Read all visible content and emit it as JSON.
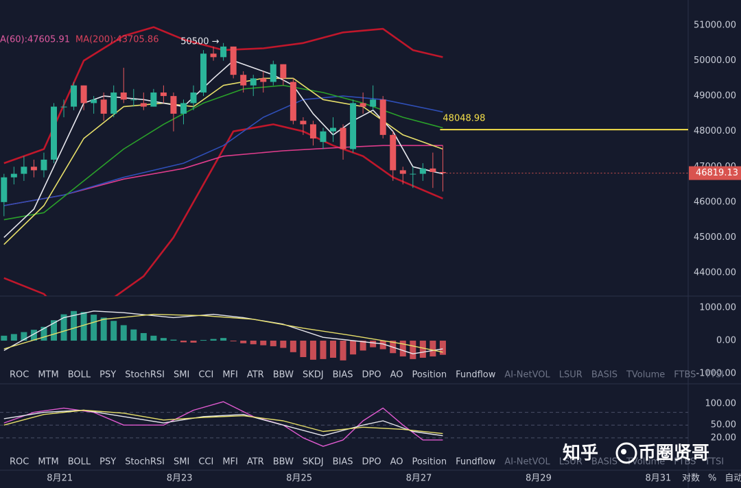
{
  "chart_data": [
    {
      "type": "candlestick",
      "open": [
        46000,
        46700,
        46800,
        47000,
        46900,
        47200,
        48700,
        48700,
        49300,
        48800,
        48900,
        48500,
        49100,
        48900,
        48800,
        48700,
        49100,
        49000,
        48500,
        48800,
        49100,
        50200,
        50100,
        50400,
        49600,
        49300,
        49500,
        49400,
        49900,
        49400,
        48300,
        48200,
        47700,
        48000,
        48100,
        47500,
        48800,
        48700,
        48900,
        47900,
        46900,
        46800,
        46800,
        46950,
        46850
      ],
      "high": [
        46800,
        47000,
        47300,
        47200,
        47400,
        48800,
        48900,
        49400,
        49300,
        49000,
        49100,
        49300,
        49800,
        49200,
        49100,
        49200,
        49300,
        49100,
        48900,
        49300,
        50300,
        50400,
        50500,
        50400,
        49700,
        49600,
        49700,
        50000,
        49900,
        49500,
        48400,
        48300,
        48100,
        48400,
        48200,
        48900,
        49100,
        49300,
        49000,
        48000,
        47000,
        47000,
        47100,
        47400,
        47600
      ],
      "low": [
        45600,
        46500,
        46600,
        46700,
        46700,
        47100,
        48400,
        48600,
        48600,
        48500,
        48300,
        48400,
        48800,
        48700,
        48600,
        48700,
        48800,
        48000,
        48200,
        48600,
        49000,
        50000,
        50000,
        49500,
        49100,
        49000,
        49100,
        49300,
        49300,
        48200,
        47900,
        47600,
        47500,
        47700,
        47200,
        47400,
        48500,
        48600,
        47800,
        46600,
        46500,
        46400,
        46600,
        46400,
        46300
      ],
      "close": [
        46700,
        46800,
        47000,
        46900,
        47200,
        48700,
        48700,
        49300,
        48800,
        48900,
        48500,
        49100,
        48900,
        48900,
        48700,
        49100,
        49000,
        48500,
        48800,
        49100,
        50200,
        50100,
        50400,
        49600,
        49300,
        49500,
        49400,
        49900,
        49500,
        48300,
        48200,
        47800,
        48000,
        48100,
        47500,
        48800,
        48700,
        48900,
        47900,
        46900,
        46800,
        46800,
        46950,
        46850,
        46819.13
      ],
      "up_color": "#2bb59a",
      "down_color": "#e8575d",
      "max_label": "50500 →",
      "legend": [
        {
          "text": "A(60):47605.91",
          "color": "#e05aa0"
        },
        {
          "text": "MA(200):43705.86",
          "color": "#d9415a"
        }
      ],
      "hline": {
        "value": 48048.98,
        "color": "#f5e04a"
      },
      "last_color": "#d9534f",
      "bands": [
        {
          "color": "#c0172b",
          "x": [
            0,
            4,
            8,
            12,
            15,
            18,
            22,
            26,
            30,
            34,
            38,
            41,
            44
          ],
          "values": [
            47100,
            47500,
            50000,
            50700,
            50950,
            50600,
            50300,
            50350,
            50500,
            50800,
            50900,
            50300,
            50100
          ]
        },
        {
          "color": "#c0172b",
          "x": [
            0,
            4,
            6,
            11,
            14,
            17,
            20,
            23,
            27,
            30,
            33,
            36,
            39,
            44
          ],
          "values": [
            43850,
            43400,
            42800,
            43300,
            43900,
            45000,
            46500,
            48000,
            48200,
            48000,
            47600,
            47300,
            46700,
            46100
          ]
        }
      ],
      "series": [
        {
          "color": "#e03c8c",
          "x": [
            0,
            6,
            12,
            18,
            22,
            28,
            34,
            38,
            44
          ],
          "values": [
            45900,
            46200,
            46650,
            46950,
            47300,
            47450,
            47550,
            47600,
            47600
          ]
        },
        {
          "color": "#2f4fb8",
          "x": [
            0,
            6,
            12,
            18,
            22,
            26,
            30,
            34,
            38,
            44
          ],
          "values": [
            45900,
            46200,
            46700,
            47100,
            47600,
            48400,
            48900,
            49000,
            48900,
            48550
          ]
        },
        {
          "color": "#2aa12a",
          "x": [
            0,
            4,
            8,
            12,
            16,
            20,
            24,
            28,
            32,
            36,
            40,
            44
          ],
          "values": [
            45500,
            45700,
            46600,
            47500,
            48200,
            48800,
            49200,
            49300,
            49100,
            48800,
            48400,
            48100
          ]
        },
        {
          "color": "#e8e06a",
          "x": [
            0,
            4,
            8,
            12,
            16,
            19,
            22,
            26,
            29,
            32,
            36,
            40,
            44
          ],
          "values": [
            44800,
            45900,
            47800,
            48700,
            48800,
            48700,
            49300,
            49500,
            49500,
            48900,
            48700,
            47900,
            47500
          ]
        },
        {
          "color": "#e8e8ee",
          "x": [
            0,
            3,
            6,
            8,
            10,
            14,
            18,
            21,
            23,
            25,
            27,
            29,
            31,
            33,
            35,
            37,
            39,
            41,
            44
          ],
          "values": [
            45000,
            45800,
            47600,
            48800,
            49000,
            48900,
            48700,
            49500,
            50000,
            49800,
            49600,
            49300,
            48500,
            47900,
            48300,
            48600,
            48000,
            47000,
            46800
          ]
        }
      ],
      "xlim": [
        -0.4,
        68.6
      ],
      "xticks": [
        {
          "value": 5.6,
          "label": "8月21"
        },
        {
          "value": 17.6,
          "label": "8月23"
        },
        {
          "value": 29.6,
          "label": "8月25"
        },
        {
          "value": 41.6,
          "label": "8月27"
        },
        {
          "value": 53.6,
          "label": "8月29"
        },
        {
          "value": 65.6,
          "label": "8月31"
        }
      ],
      "ylim": [
        43340,
        51717
      ],
      "yticks": [
        {
          "value": 44000,
          "label": "44000.00"
        },
        {
          "value": 45000,
          "label": "45000.00"
        },
        {
          "value": 46000,
          "label": "46000.00"
        },
        {
          "value": 47000,
          "label": "47000.00"
        },
        {
          "value": 48000,
          "label": "48000.00"
        },
        {
          "value": 49000,
          "label": "49000.00"
        },
        {
          "value": 50000,
          "label": "50000.00"
        },
        {
          "value": 51000,
          "label": "51000.00"
        }
      ]
    },
    {
      "type": "macd",
      "values": [
        150,
        200,
        260,
        330,
        420,
        620,
        800,
        900,
        870,
        790,
        700,
        600,
        470,
        340,
        230,
        150,
        80,
        30,
        -50,
        -60,
        20,
        50,
        80,
        -20,
        -80,
        -110,
        -140,
        -170,
        -220,
        -350,
        -500,
        -580,
        -560,
        -520,
        -600,
        -420,
        -300,
        -200,
        -260,
        -380,
        -480,
        -560,
        -520,
        -480,
        -430
      ],
      "up_color": "#2bb59a",
      "down_color": "#e8575d",
      "series": [
        {
          "color": "#e8e8ee",
          "x": [
            0,
            3,
            6,
            9,
            12,
            17,
            21,
            24,
            28,
            32,
            35,
            38,
            41,
            44
          ],
          "values": [
            -300,
            200,
            700,
            900,
            850,
            700,
            800,
            700,
            500,
            100,
            0,
            -100,
            -400,
            -250
          ]
        },
        {
          "color": "#e8e06a",
          "x": [
            0,
            5,
            10,
            15,
            20,
            25,
            30,
            35,
            40,
            44
          ],
          "values": [
            -250,
            200,
            650,
            800,
            760,
            650,
            380,
            150,
            -100,
            -350
          ]
        }
      ],
      "ylim": [
        -1312,
        1354
      ],
      "yticks": [
        {
          "value": 1000,
          "label": "1000.00"
        },
        {
          "value": 0,
          "label": "0.00"
        },
        {
          "value": -1000,
          "label": "-1000.00"
        }
      ]
    },
    {
      "type": "line",
      "series": [
        {
          "color": "#e05ad0",
          "x": [
            0,
            3,
            6,
            9,
            12,
            16,
            19,
            22,
            25,
            28,
            30,
            32,
            34,
            36,
            38,
            40,
            42,
            44
          ],
          "values": [
            55,
            80,
            90,
            80,
            50,
            50,
            85,
            105,
            70,
            50,
            20,
            0,
            15,
            60,
            90,
            50,
            15,
            15
          ]
        },
        {
          "color": "#e8e8ee",
          "x": [
            0,
            4,
            8,
            12,
            16,
            20,
            24,
            28,
            32,
            36,
            38,
            41,
            44
          ],
          "values": [
            65,
            80,
            85,
            70,
            55,
            70,
            75,
            50,
            25,
            50,
            60,
            35,
            25
          ]
        },
        {
          "color": "#e8e06a",
          "x": [
            0,
            4,
            8,
            12,
            16,
            20,
            24,
            28,
            32,
            36,
            40,
            44
          ],
          "values": [
            50,
            75,
            85,
            78,
            62,
            68,
            72,
            60,
            35,
            45,
            40,
            30
          ]
        }
      ],
      "levels": [
        80,
        50,
        20
      ],
      "ylim": [
        -56,
        147
      ],
      "yticks": [
        {
          "value": 100,
          "label": "100.00"
        },
        {
          "value": 50,
          "label": "50.00"
        },
        {
          "value": 20,
          "label": "20.00"
        }
      ]
    }
  ],
  "tabs": [
    "ROC",
    "MTM",
    "BOLL",
    "PSY",
    "StochRSI",
    "SMI",
    "CCI",
    "MFI",
    "ATR",
    "BBW",
    "SKDJ",
    "BIAS",
    "DPO",
    "AO",
    "Position",
    "Fundflow"
  ],
  "unavailable_tabs": [
    "AI-NetVOL",
    "LSUR",
    "BASIS",
    "TVolume",
    "FTBS",
    "TTSI"
  ],
  "axis_options": [
    "对数",
    "%",
    "自动"
  ],
  "watermark": {
    "site": "知乎",
    "author": "币圈贤哥"
  }
}
